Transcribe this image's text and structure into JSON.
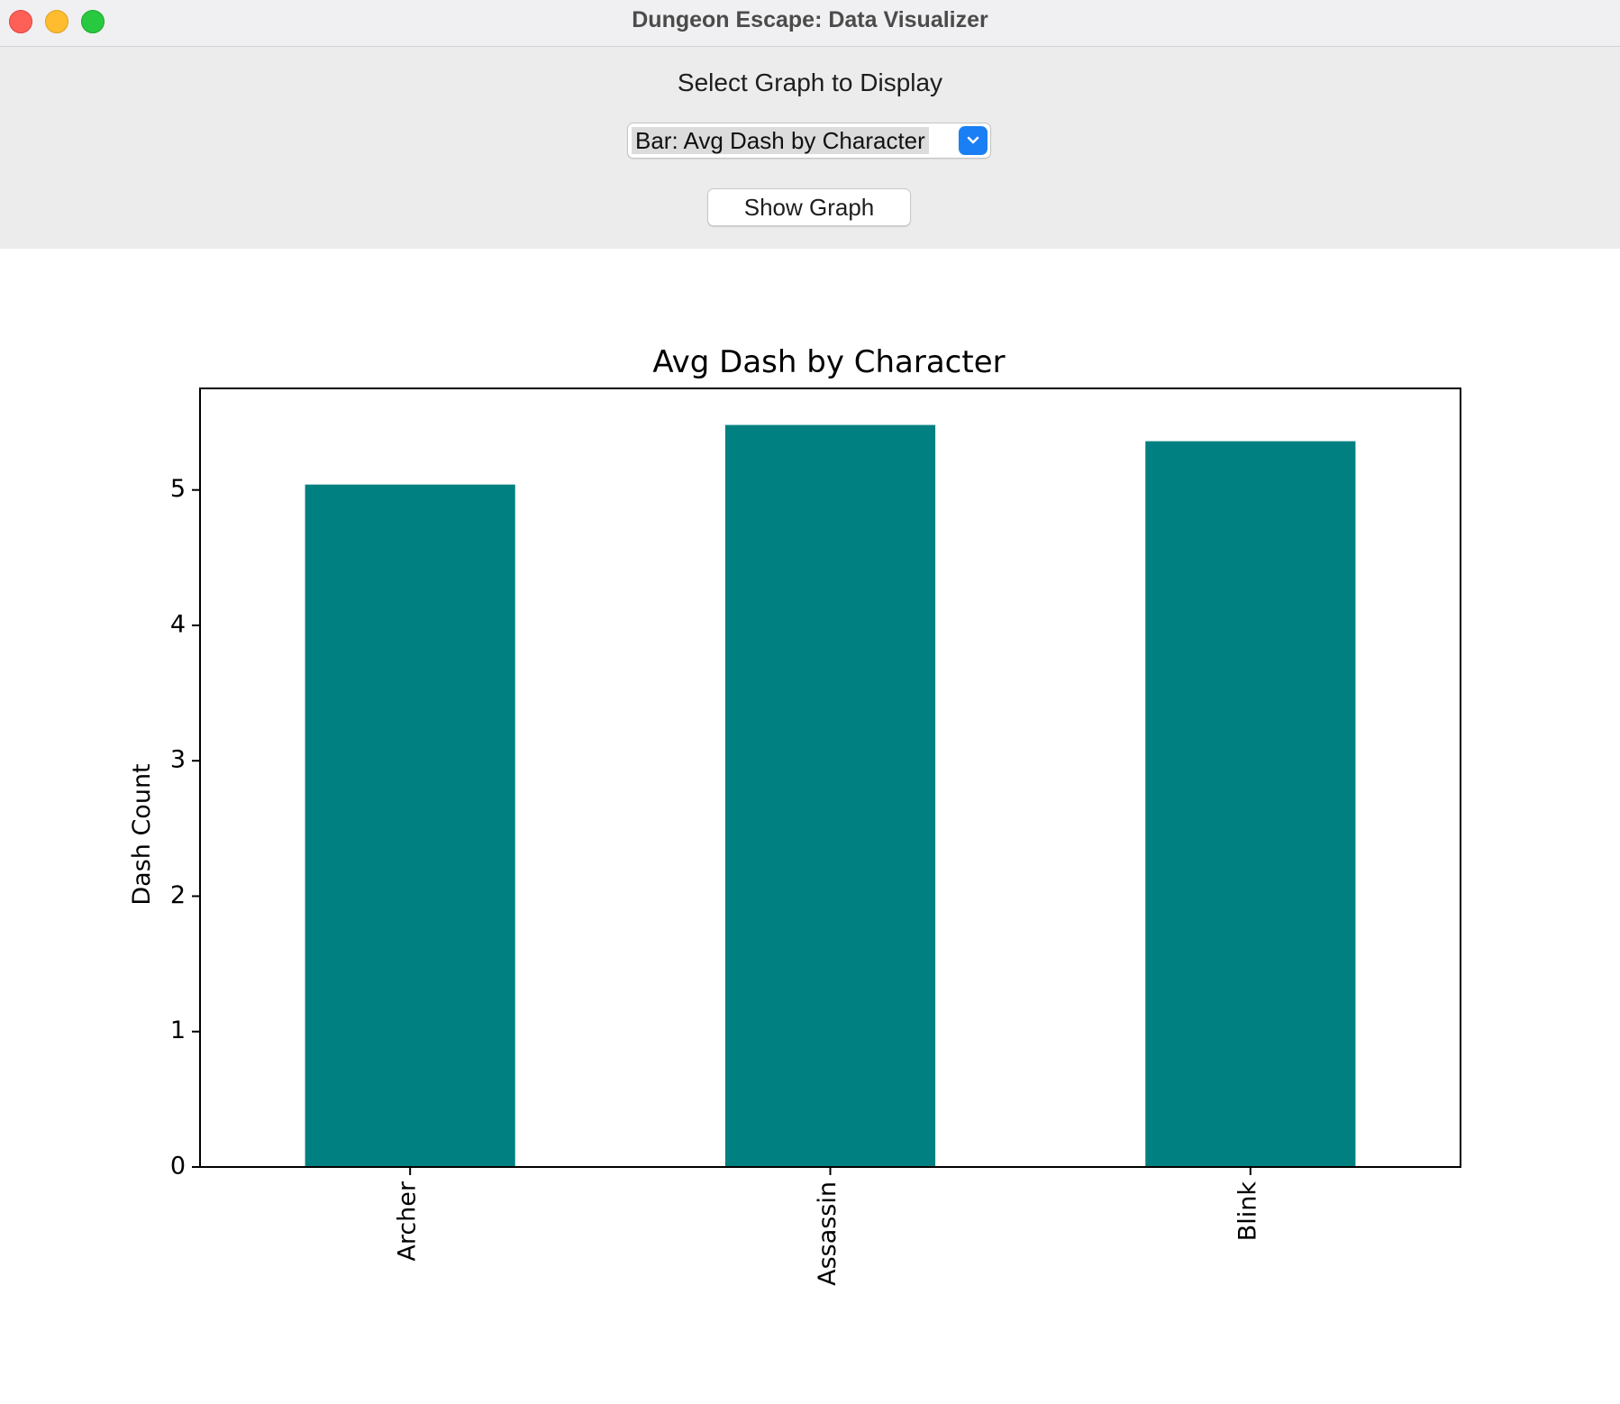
{
  "window": {
    "title": "Dungeon Escape: Data Visualizer"
  },
  "controls": {
    "select_label": "Select Graph to Display",
    "graph_select_value": "Bar: Avg Dash by Character",
    "show_button_label": "Show Graph"
  },
  "colors": {
    "bar": "#008080",
    "panel_background": "#ececec",
    "dropdown_accent": "#1a7ef5"
  },
  "chart_data": {
    "type": "bar",
    "title": "Avg Dash by Character",
    "xlabel": "",
    "ylabel": "Dash Count",
    "categories": [
      "Archer",
      "Assassin",
      "Blink"
    ],
    "values": [
      5.04,
      5.48,
      5.36
    ],
    "ylim": [
      0,
      5.75
    ],
    "yticks": [
      0,
      1,
      2,
      3,
      4,
      5
    ],
    "grid": false,
    "legend": "none",
    "xtick_rotation": "vertical"
  }
}
